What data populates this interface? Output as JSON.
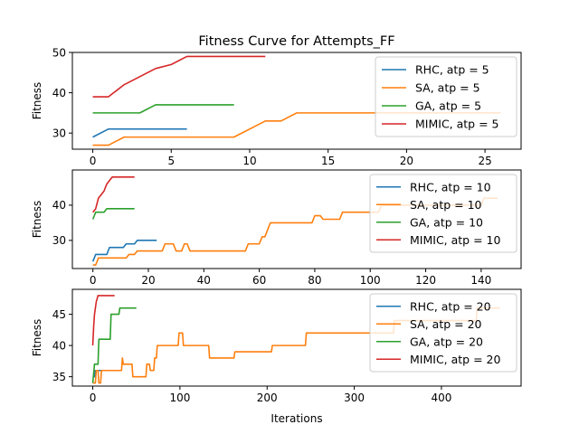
{
  "chart_data": {
    "type": "line",
    "title": "Fitness Curve for Attempts_FF",
    "xlabel": "Iterations",
    "colors": [
      "#1f77b4",
      "#ff7f0e",
      "#2ca02c",
      "#d62728"
    ],
    "subplots": [
      {
        "ylabel": "Fitness",
        "xlim": [
          -1.3,
          27.3
        ],
        "ylim": [
          26,
          50
        ],
        "xticks": [
          0,
          5,
          10,
          15,
          20,
          25
        ],
        "yticks": [
          30,
          40,
          50
        ],
        "legend": "upper-right",
        "series": [
          {
            "name": "RHC, atp = 5",
            "points": [
              [
                0,
                29
              ],
              [
                1,
                31
              ],
              [
                6,
                31
              ]
            ]
          },
          {
            "name": "SA, atp = 5",
            "points": [
              [
                0,
                27
              ],
              [
                1,
                27
              ],
              [
                2,
                29
              ],
              [
                9,
                29
              ],
              [
                11,
                33
              ],
              [
                12,
                33
              ],
              [
                13,
                35
              ],
              [
                26,
                35
              ]
            ]
          },
          {
            "name": "GA, atp = 5",
            "points": [
              [
                0,
                35
              ],
              [
                3,
                35
              ],
              [
                4,
                37
              ],
              [
                9,
                37
              ]
            ]
          },
          {
            "name": "MIMIC, atp = 5",
            "points": [
              [
                0,
                39
              ],
              [
                1,
                39
              ],
              [
                2,
                42
              ],
              [
                4,
                46
              ],
              [
                5,
                47
              ],
              [
                6,
                49
              ],
              [
                11,
                49
              ]
            ]
          }
        ]
      },
      {
        "ylabel": "Fitness",
        "xlim": [
          -7.4,
          154.4
        ],
        "ylim": [
          22,
          50
        ],
        "xticks": [
          0,
          20,
          40,
          60,
          80,
          100,
          120,
          140
        ],
        "yticks": [
          30,
          40
        ],
        "legend": "upper-right",
        "series": [
          {
            "name": "RHC, atp = 10",
            "points": [
              [
                0,
                24
              ],
              [
                1,
                26
              ],
              [
                5,
                26
              ],
              [
                6,
                28
              ],
              [
                11,
                28
              ],
              [
                12,
                29
              ],
              [
                15,
                29
              ],
              [
                16,
                30
              ],
              [
                23,
                30
              ]
            ]
          },
          {
            "name": "SA, atp = 10",
            "points": [
              [
                0,
                23
              ],
              [
                1,
                23
              ],
              [
                2,
                25
              ],
              [
                12,
                25
              ],
              [
                13,
                26
              ],
              [
                15,
                26
              ],
              [
                16,
                27
              ],
              [
                25,
                27
              ],
              [
                26,
                29
              ],
              [
                29,
                29
              ],
              [
                30,
                27
              ],
              [
                32,
                27
              ],
              [
                33,
                29
              ],
              [
                34,
                29
              ],
              [
                35,
                27
              ],
              [
                55,
                27
              ],
              [
                56,
                29
              ],
              [
                60,
                29
              ],
              [
                61,
                31
              ],
              [
                62,
                31
              ],
              [
                63,
                33
              ],
              [
                64,
                35
              ],
              [
                79,
                35
              ],
              [
                80,
                37
              ],
              [
                82,
                37
              ],
              [
                83,
                36
              ],
              [
                89,
                36
              ],
              [
                90,
                38
              ],
              [
                103,
                38
              ],
              [
                104,
                40
              ],
              [
                140,
                40
              ],
              [
                141,
                42
              ],
              [
                146,
                42
              ]
            ]
          },
          {
            "name": "GA, atp = 10",
            "points": [
              [
                0,
                36
              ],
              [
                1,
                38
              ],
              [
                4,
                38
              ],
              [
                5,
                39
              ],
              [
                15,
                39
              ]
            ]
          },
          {
            "name": "MIMIC, atp = 10",
            "points": [
              [
                0,
                38
              ],
              [
                1,
                39
              ],
              [
                2,
                42
              ],
              [
                4,
                44
              ],
              [
                5,
                46
              ],
              [
                6,
                47
              ],
              [
                7,
                48
              ],
              [
                15,
                48
              ]
            ]
          }
        ]
      },
      {
        "ylabel": "Fitness",
        "xlim": [
          -23.4,
          491.4
        ],
        "ylim": [
          33.5,
          49
        ],
        "xticks": [
          0,
          100,
          200,
          300,
          400
        ],
        "yticks": [
          35,
          40,
          45
        ],
        "legend": "upper-right",
        "series": [
          {
            "name": "RHC, atp = 20",
            "points": [
              [
                0,
                35
              ],
              [
                2,
                35
              ],
              [
                3,
                36
              ],
              [
                10,
                36
              ]
            ]
          },
          {
            "name": "SA, atp = 20",
            "points": [
              [
                0,
                34
              ],
              [
                3,
                34
              ],
              [
                4,
                36
              ],
              [
                6,
                36
              ],
              [
                7,
                34
              ],
              [
                9,
                34
              ],
              [
                10,
                36
              ],
              [
                33,
                36
              ],
              [
                34,
                38
              ],
              [
                35,
                37
              ],
              [
                45,
                37
              ],
              [
                46,
                35
              ],
              [
                61,
                35
              ],
              [
                62,
                37
              ],
              [
                65,
                37
              ],
              [
                66,
                36
              ],
              [
                70,
                36
              ],
              [
                71,
                38
              ],
              [
                73,
                38
              ],
              [
                74,
                40
              ],
              [
                98,
                40
              ],
              [
                99,
                42
              ],
              [
                103,
                42
              ],
              [
                104,
                40
              ],
              [
                133,
                40
              ],
              [
                134,
                38
              ],
              [
                162,
                38
              ],
              [
                163,
                39
              ],
              [
                205,
                39
              ],
              [
                206,
                40
              ],
              [
                244,
                40
              ],
              [
                245,
                42
              ],
              [
                345,
                42
              ],
              [
                346,
                44
              ],
              [
                440,
                44
              ],
              [
                441,
                46
              ],
              [
                467,
                46
              ]
            ]
          },
          {
            "name": "GA, atp = 20",
            "points": [
              [
                0,
                34
              ],
              [
                2,
                37
              ],
              [
                6,
                37
              ],
              [
                7,
                41
              ],
              [
                20,
                41
              ],
              [
                21,
                45
              ],
              [
                30,
                45
              ],
              [
                31,
                46
              ],
              [
                50,
                46
              ]
            ]
          },
          {
            "name": "MIMIC, atp = 20",
            "points": [
              [
                0,
                40
              ],
              [
                1,
                43
              ],
              [
                2,
                45
              ],
              [
                4,
                47
              ],
              [
                6,
                48
              ],
              [
                25,
                48
              ]
            ]
          }
        ]
      }
    ]
  }
}
